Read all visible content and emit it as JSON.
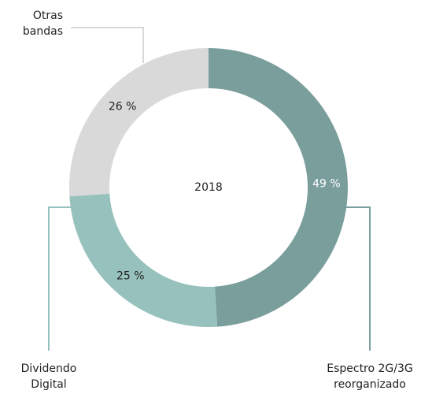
{
  "chart_data": {
    "type": "donut",
    "center_label": "2018",
    "categories": [
      "Espectro 2G/3G reorganizado",
      "Dividendo Digital",
      "Otras bandas"
    ],
    "values": [
      49,
      25,
      26
    ],
    "value_labels": [
      "49 %",
      "25 %",
      "26 %"
    ],
    "colors": [
      "#7a9e9c",
      "#97c1bd",
      "#d9d9d9"
    ]
  }
}
